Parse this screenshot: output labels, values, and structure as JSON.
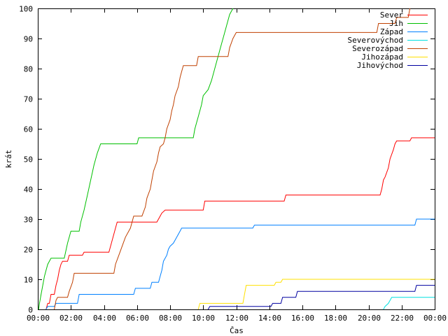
{
  "chart_data": {
    "type": "line",
    "xlabel": "Čas",
    "ylabel": "krát",
    "xlim": [
      0,
      24
    ],
    "ylim": [
      0,
      100
    ],
    "x_ticks": [
      0,
      2,
      4,
      6,
      8,
      10,
      12,
      14,
      16,
      18,
      20,
      22,
      24
    ],
    "x_tick_labels": [
      "00:00",
      "02:00",
      "04:00",
      "06:00",
      "08:00",
      "10:00",
      "12:00",
      "14:00",
      "16:00",
      "18:00",
      "20:00",
      "22:00",
      "00:00"
    ],
    "y_ticks": [
      0,
      10,
      20,
      30,
      40,
      50,
      60,
      70,
      80,
      90,
      100
    ],
    "y_tick_labels": [
      "0",
      "10",
      "20",
      "30",
      "40",
      "50",
      "60",
      "70",
      "80",
      "90",
      "100"
    ],
    "legend_position": "top-right",
    "series": [
      {
        "name": "Sever",
        "color": "#ff0000",
        "points": [
          [
            0.5,
            0
          ],
          [
            0.6,
            2
          ],
          [
            0.7,
            2
          ],
          [
            0.8,
            5
          ],
          [
            1.0,
            5
          ],
          [
            1.1,
            8
          ],
          [
            1.2,
            10
          ],
          [
            1.3,
            13
          ],
          [
            1.4,
            15
          ],
          [
            1.5,
            16
          ],
          [
            1.8,
            16
          ],
          [
            1.9,
            18
          ],
          [
            2.7,
            18
          ],
          [
            2.8,
            19
          ],
          [
            4.3,
            19
          ],
          [
            4.5,
            23
          ],
          [
            4.7,
            27
          ],
          [
            4.8,
            29
          ],
          [
            7.2,
            29
          ],
          [
            7.4,
            31
          ],
          [
            7.5,
            32
          ],
          [
            7.7,
            33
          ],
          [
            10.0,
            33
          ],
          [
            10.1,
            36
          ],
          [
            14.9,
            36
          ],
          [
            15.0,
            38
          ],
          [
            20.7,
            38
          ],
          [
            20.8,
            40
          ],
          [
            20.9,
            43
          ],
          [
            21.0,
            44
          ],
          [
            21.2,
            47
          ],
          [
            21.3,
            50
          ],
          [
            21.5,
            53
          ],
          [
            21.6,
            55
          ],
          [
            21.7,
            56
          ],
          [
            22.5,
            56
          ],
          [
            22.6,
            57
          ],
          [
            24.0,
            57
          ]
        ]
      },
      {
        "name": "Jih",
        "color": "#00c000",
        "points": [
          [
            0.05,
            0
          ],
          [
            0.1,
            2
          ],
          [
            0.2,
            5
          ],
          [
            0.3,
            8
          ],
          [
            0.4,
            11
          ],
          [
            0.5,
            13
          ],
          [
            0.6,
            15
          ],
          [
            0.8,
            17
          ],
          [
            1.6,
            17
          ],
          [
            1.8,
            22
          ],
          [
            2.0,
            26
          ],
          [
            2.5,
            26
          ],
          [
            2.6,
            29
          ],
          [
            2.8,
            33
          ],
          [
            3.0,
            38
          ],
          [
            3.2,
            43
          ],
          [
            3.4,
            48
          ],
          [
            3.6,
            52
          ],
          [
            3.8,
            55
          ],
          [
            6.0,
            55
          ],
          [
            6.1,
            57
          ],
          [
            9.4,
            57
          ],
          [
            9.5,
            60
          ],
          [
            9.7,
            64
          ],
          [
            9.9,
            68
          ],
          [
            10.0,
            71
          ],
          [
            10.3,
            73
          ],
          [
            10.5,
            76
          ],
          [
            10.7,
            80
          ],
          [
            10.9,
            84
          ],
          [
            11.1,
            88
          ],
          [
            11.3,
            92
          ],
          [
            11.5,
            96
          ],
          [
            11.6,
            98
          ],
          [
            11.8,
            100
          ]
        ]
      },
      {
        "name": "Západ",
        "color": "#0080ff",
        "points": [
          [
            0.5,
            0
          ],
          [
            0.6,
            1
          ],
          [
            1.0,
            1
          ],
          [
            1.1,
            2
          ],
          [
            2.4,
            2
          ],
          [
            2.5,
            5
          ],
          [
            5.8,
            5
          ],
          [
            5.9,
            7
          ],
          [
            6.8,
            7
          ],
          [
            6.9,
            9
          ],
          [
            7.3,
            9
          ],
          [
            7.4,
            11
          ],
          [
            7.5,
            13
          ],
          [
            7.6,
            16
          ],
          [
            7.8,
            18
          ],
          [
            7.9,
            20
          ],
          [
            8.0,
            21
          ],
          [
            8.2,
            22
          ],
          [
            8.4,
            24
          ],
          [
            8.6,
            26
          ],
          [
            8.7,
            27
          ],
          [
            13.0,
            27
          ],
          [
            13.1,
            28
          ],
          [
            22.8,
            28
          ],
          [
            22.9,
            30
          ],
          [
            24.0,
            30
          ]
        ]
      },
      {
        "name": "Severovýchod",
        "color": "#00e0e0",
        "points": [
          [
            20.9,
            0
          ],
          [
            21.0,
            1
          ],
          [
            21.2,
            2
          ],
          [
            21.3,
            3
          ],
          [
            21.4,
            4
          ],
          [
            24.0,
            4
          ]
        ]
      },
      {
        "name": "Severozápad",
        "color": "#c04000",
        "points": [
          [
            1.0,
            0
          ],
          [
            1.1,
            3
          ],
          [
            1.2,
            4
          ],
          [
            1.8,
            4
          ],
          [
            1.9,
            6
          ],
          [
            2.1,
            9
          ],
          [
            2.2,
            12
          ],
          [
            4.6,
            12
          ],
          [
            4.7,
            15
          ],
          [
            4.9,
            18
          ],
          [
            5.1,
            21
          ],
          [
            5.3,
            24
          ],
          [
            5.6,
            27
          ],
          [
            5.8,
            31
          ],
          [
            6.3,
            31
          ],
          [
            6.5,
            34
          ],
          [
            6.6,
            37
          ],
          [
            6.8,
            40
          ],
          [
            6.9,
            43
          ],
          [
            7.0,
            46
          ],
          [
            7.2,
            49
          ],
          [
            7.3,
            52
          ],
          [
            7.4,
            54
          ],
          [
            7.6,
            55
          ],
          [
            7.7,
            57
          ],
          [
            7.8,
            60
          ],
          [
            8.0,
            63
          ],
          [
            8.1,
            66
          ],
          [
            8.2,
            68
          ],
          [
            8.3,
            71
          ],
          [
            8.5,
            74
          ],
          [
            8.6,
            77
          ],
          [
            8.7,
            79
          ],
          [
            8.8,
            81
          ],
          [
            9.6,
            81
          ],
          [
            9.7,
            84
          ],
          [
            11.5,
            84
          ],
          [
            11.6,
            87
          ],
          [
            11.8,
            90
          ],
          [
            12.0,
            92
          ],
          [
            20.5,
            92
          ],
          [
            20.6,
            95
          ],
          [
            21.6,
            95
          ],
          [
            21.7,
            97
          ],
          [
            22.4,
            97
          ],
          [
            22.5,
            100
          ]
        ]
      },
      {
        "name": "Jihozápad",
        "color": "#ffe000",
        "points": [
          [
            9.7,
            0
          ],
          [
            9.8,
            2
          ],
          [
            12.4,
            2
          ],
          [
            12.5,
            5
          ],
          [
            12.6,
            8
          ],
          [
            14.3,
            8
          ],
          [
            14.4,
            9
          ],
          [
            14.7,
            9
          ],
          [
            14.8,
            10
          ],
          [
            24.0,
            10
          ]
        ]
      },
      {
        "name": "Jihovýchod",
        "color": "#0000a0",
        "points": [
          [
            10.3,
            0
          ],
          [
            10.4,
            1
          ],
          [
            14.1,
            1
          ],
          [
            14.2,
            2
          ],
          [
            14.7,
            2
          ],
          [
            14.8,
            4
          ],
          [
            15.6,
            4
          ],
          [
            15.7,
            6
          ],
          [
            22.8,
            6
          ],
          [
            22.9,
            8
          ],
          [
            24.0,
            8
          ]
        ]
      }
    ]
  }
}
